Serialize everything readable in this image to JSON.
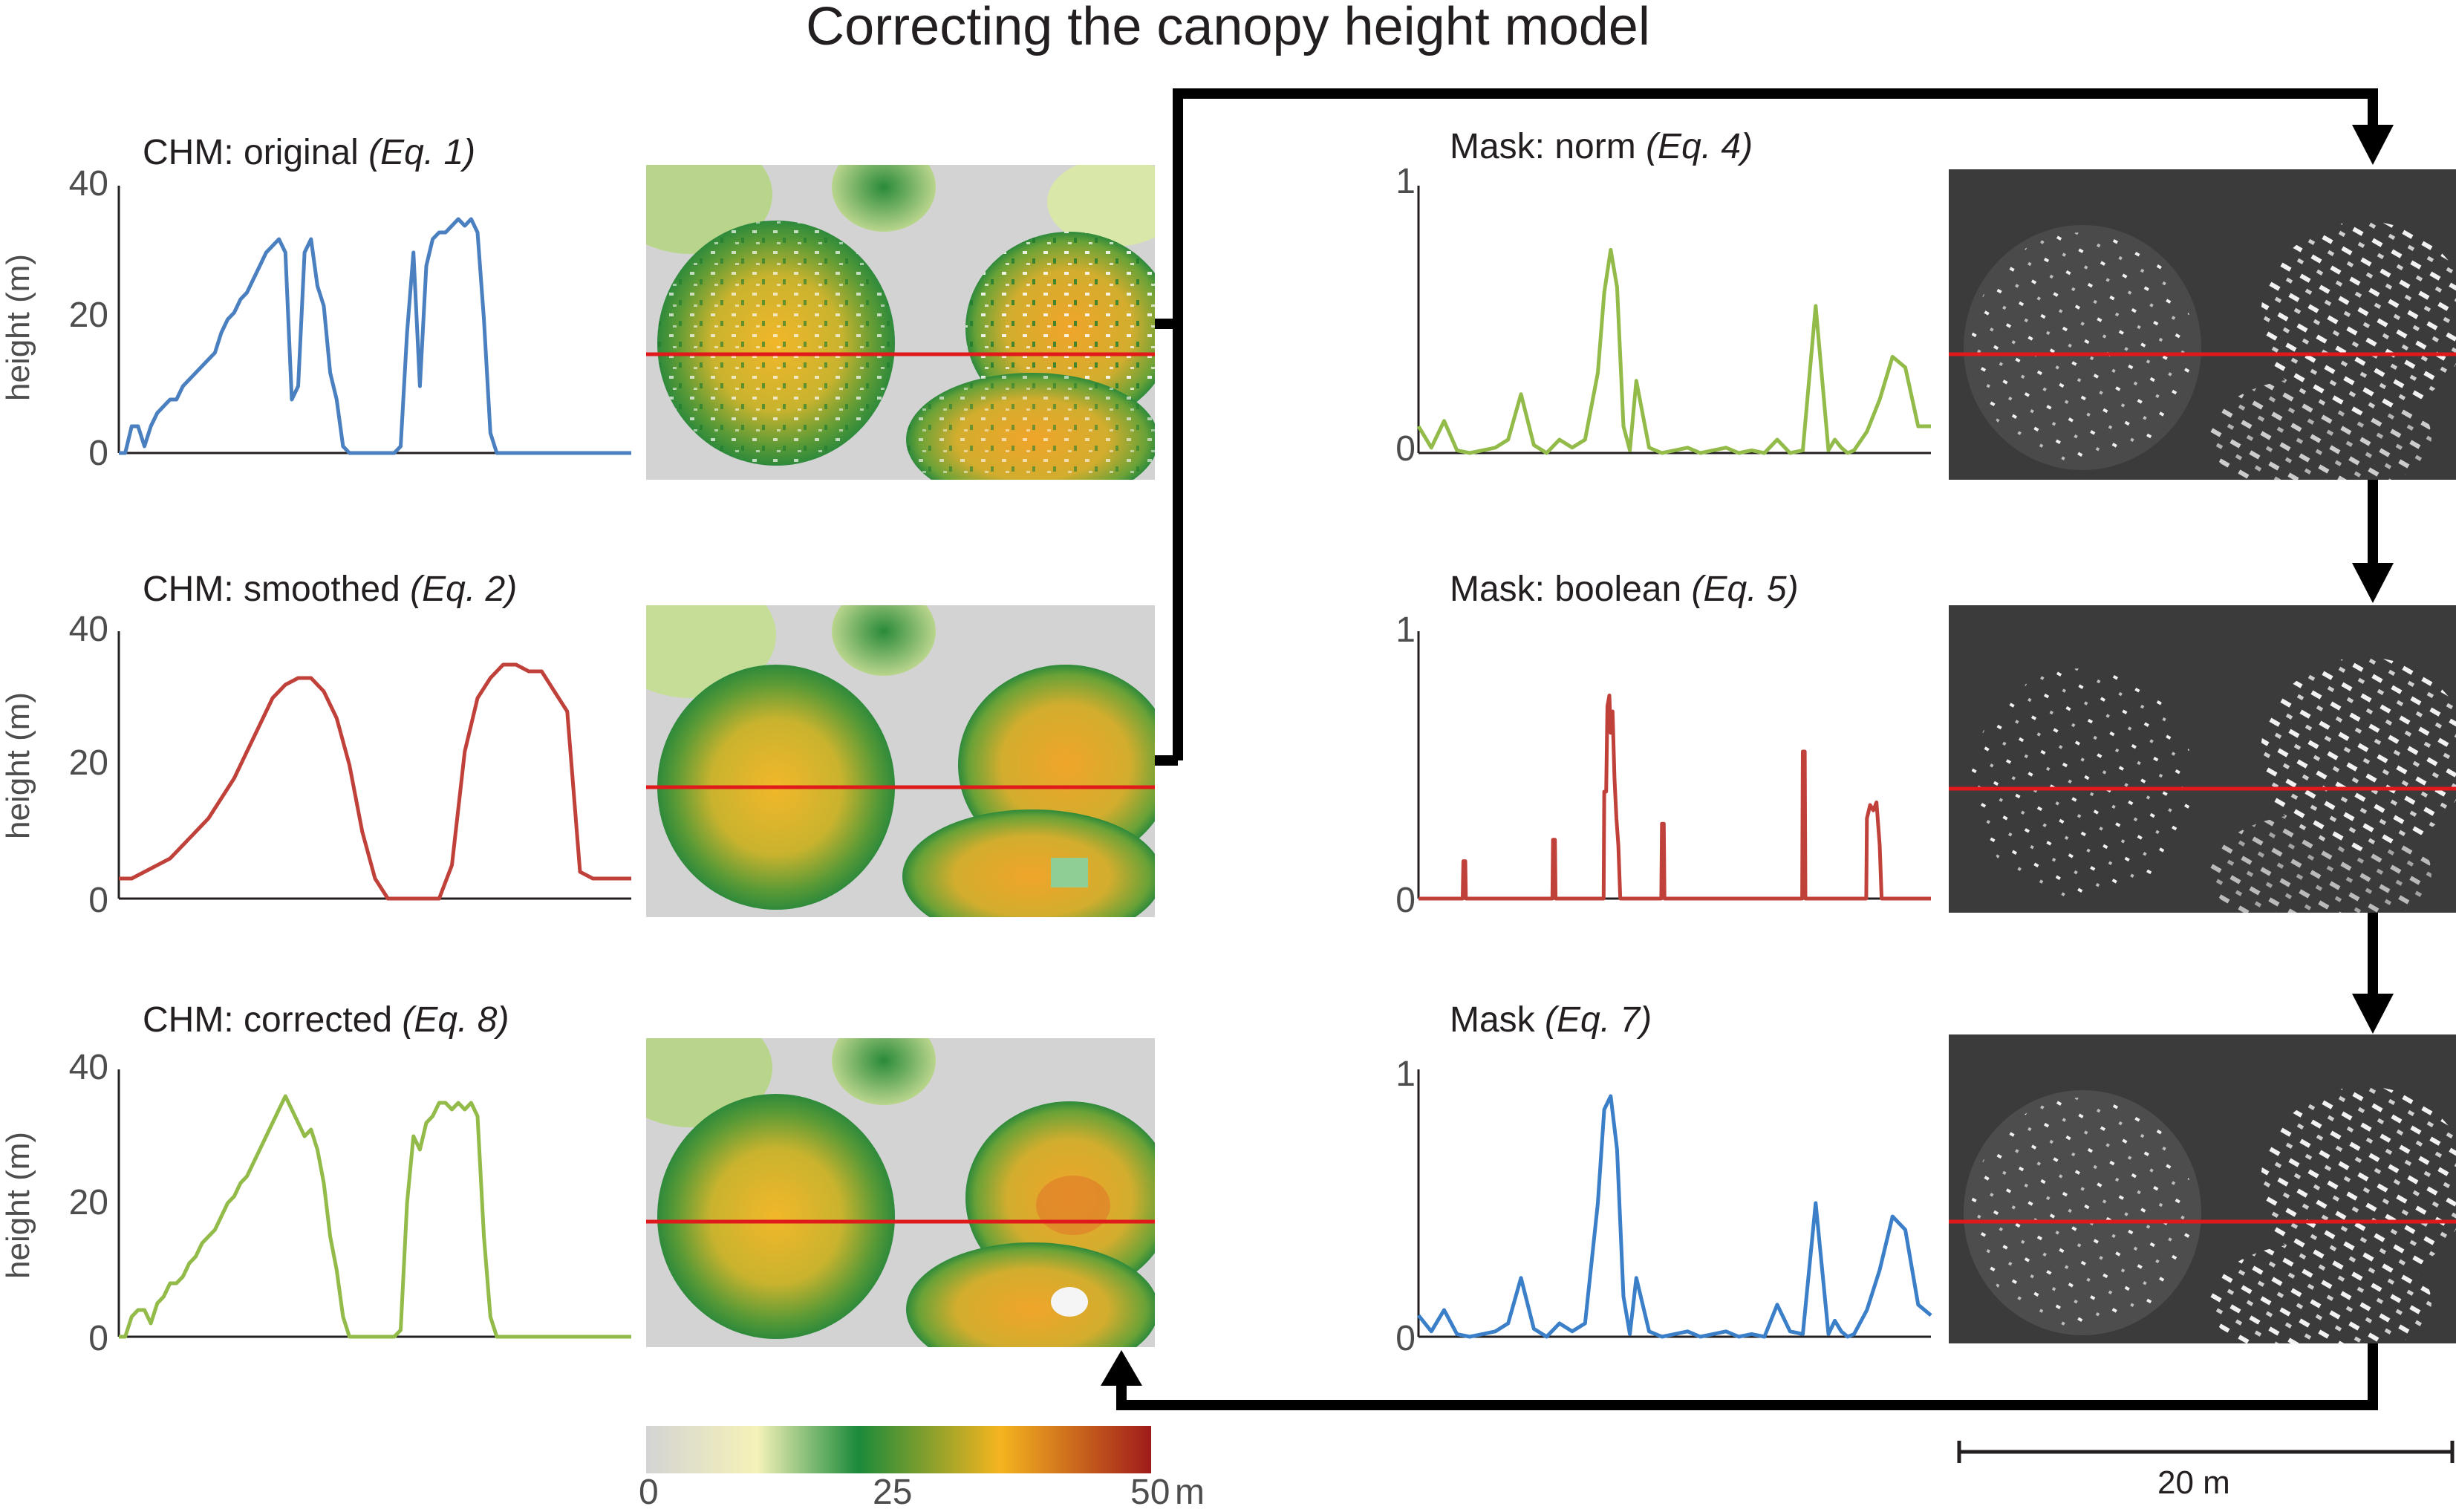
{
  "title": "Correcting the canopy height model",
  "colors": {
    "original": "#4a7fc0",
    "smoothed": "#c0413a",
    "corrected": "#92bb4a",
    "mask_norm": "#92bb4a",
    "mask_boolean": "#c0413a",
    "mask_final": "#3a7fc8",
    "transect": "#e0191b",
    "axis": "#231f20",
    "arrow": "#000000"
  },
  "colorbar": {
    "stops": [
      "#d4d4d4",
      "#f5f2b8",
      "#1a8a3a",
      "#f5b51f",
      "#a01b1b"
    ],
    "ticks": [
      "0",
      "25",
      "50"
    ],
    "unit": "m"
  },
  "scalebar": {
    "label": "20 m"
  },
  "chart_data": [
    {
      "type": "line",
      "title": "CHM: original",
      "eq": "(Eq. 1)",
      "ylabel": "height (m)",
      "yticks": [
        "0",
        "20",
        "40"
      ],
      "ylim": [
        0,
        40
      ],
      "xlim": [
        0,
        80
      ],
      "series": [
        {
          "name": "CHM original",
          "color_key": "original",
          "x": [
            0,
            1,
            2,
            3,
            4,
            5,
            6,
            7,
            8,
            9,
            10,
            11,
            12,
            13,
            14,
            15,
            16,
            17,
            18,
            19,
            20,
            21,
            22,
            23,
            24,
            25,
            26,
            27,
            28,
            29,
            30,
            31,
            32,
            33,
            34,
            35,
            36,
            37,
            38,
            39,
            40,
            41,
            42,
            43,
            44,
            45,
            46,
            47,
            48,
            49,
            50,
            51,
            52,
            53,
            54,
            55,
            56,
            57,
            58,
            59,
            60,
            61,
            62,
            63,
            64,
            65,
            66,
            67,
            68,
            69,
            70,
            71,
            72,
            73,
            74,
            75,
            76,
            77,
            78,
            79,
            80
          ],
          "y": [
            0,
            0,
            4,
            4,
            1,
            4,
            6,
            7,
            8,
            8,
            10,
            11,
            12,
            13,
            14,
            15,
            18,
            20,
            21,
            23,
            24,
            26,
            28,
            30,
            31,
            32,
            30,
            8,
            10,
            30,
            32,
            25,
            22,
            12,
            8,
            1,
            0,
            0,
            0,
            0,
            0,
            0,
            0,
            0,
            1,
            18,
            30,
            10,
            28,
            32,
            33,
            33,
            34,
            35,
            34,
            35,
            33,
            20,
            3,
            0,
            0,
            0,
            0,
            0,
            0,
            0,
            0,
            0,
            0,
            0,
            0,
            0,
            0,
            0,
            0,
            0,
            0,
            0,
            0,
            0,
            0
          ]
        }
      ]
    },
    {
      "type": "line",
      "title": "CHM: smoothed",
      "eq": "(Eq. 2)",
      "ylabel": "height (m)",
      "yticks": [
        "0",
        "20",
        "40"
      ],
      "ylim": [
        0,
        40
      ],
      "xlim": [
        0,
        80
      ],
      "series": [
        {
          "name": "CHM smoothed",
          "color_key": "smoothed",
          "x": [
            0,
            2,
            4,
            6,
            8,
            10,
            12,
            14,
            16,
            18,
            20,
            22,
            24,
            26,
            28,
            30,
            32,
            34,
            36,
            38,
            40,
            42,
            44,
            46,
            48,
            50,
            52,
            54,
            56,
            58,
            60,
            62,
            64,
            66,
            68,
            70,
            72,
            74,
            76,
            78,
            80
          ],
          "y": [
            3,
            3,
            4,
            5,
            6,
            8,
            10,
            12,
            15,
            18,
            22,
            26,
            30,
            32,
            33,
            33,
            31,
            27,
            20,
            10,
            3,
            0,
            0,
            0,
            0,
            0,
            5,
            22,
            30,
            33,
            35,
            35,
            34,
            34,
            31,
            28,
            4,
            3,
            3,
            3,
            3
          ]
        }
      ]
    },
    {
      "type": "line",
      "title": "CHM: corrected",
      "eq": "(Eq. 8)",
      "ylabel": "height (m)",
      "yticks": [
        "0",
        "20",
        "40"
      ],
      "ylim": [
        0,
        40
      ],
      "xlim": [
        0,
        80
      ],
      "series": [
        {
          "name": "CHM corrected",
          "color_key": "corrected",
          "x": [
            0,
            1,
            2,
            3,
            4,
            5,
            6,
            7,
            8,
            9,
            10,
            11,
            12,
            13,
            14,
            15,
            16,
            17,
            18,
            19,
            20,
            21,
            22,
            23,
            24,
            25,
            26,
            27,
            28,
            29,
            30,
            31,
            32,
            33,
            34,
            35,
            36,
            37,
            38,
            39,
            40,
            41,
            42,
            43,
            44,
            45,
            46,
            47,
            48,
            49,
            50,
            51,
            52,
            53,
            54,
            55,
            56,
            57,
            58,
            59,
            60,
            61,
            62,
            63,
            64,
            65,
            66,
            67,
            68,
            69,
            70,
            71,
            72,
            73,
            74,
            75,
            76,
            77,
            78,
            79,
            80
          ],
          "y": [
            0,
            0,
            3,
            4,
            4,
            2,
            5,
            6,
            8,
            8,
            9,
            11,
            12,
            14,
            15,
            16,
            18,
            20,
            21,
            23,
            24,
            26,
            28,
            30,
            32,
            34,
            36,
            34,
            32,
            30,
            31,
            28,
            23,
            15,
            10,
            3,
            0,
            0,
            0,
            0,
            0,
            0,
            0,
            0,
            1,
            20,
            30,
            28,
            32,
            33,
            35,
            35,
            34,
            35,
            34,
            35,
            33,
            15,
            3,
            0,
            0,
            0,
            0,
            0,
            0,
            0,
            0,
            0,
            0,
            0,
            0,
            0,
            0,
            0,
            0,
            0,
            0,
            0,
            0,
            0,
            0
          ]
        }
      ]
    },
    {
      "type": "line",
      "title": "Mask: norm",
      "eq": "(Eq. 4)",
      "yticks": [
        "0",
        "1"
      ],
      "ylim": [
        0,
        1
      ],
      "xlim": [
        0,
        80
      ],
      "series": [
        {
          "name": "Mask norm",
          "color_key": "mask_norm",
          "x": [
            0,
            2,
            4,
            6,
            8,
            10,
            12,
            14,
            16,
            18,
            20,
            22,
            24,
            26,
            28,
            29,
            30,
            31,
            32,
            33,
            34,
            36,
            38,
            40,
            42,
            44,
            46,
            48,
            50,
            52,
            54,
            56,
            58,
            60,
            62,
            64,
            65,
            66,
            67,
            68,
            70,
            72,
            74,
            76,
            78,
            80
          ],
          "y": [
            0.1,
            0.02,
            0.12,
            0.01,
            0.0,
            0.01,
            0.02,
            0.05,
            0.22,
            0.03,
            0.0,
            0.05,
            0.02,
            0.05,
            0.3,
            0.6,
            0.76,
            0.62,
            0.1,
            0.01,
            0.27,
            0.02,
            0.0,
            0.01,
            0.02,
            0.0,
            0.01,
            0.02,
            0.0,
            0.01,
            0.0,
            0.05,
            0.0,
            0.01,
            0.55,
            0.01,
            0.05,
            0.02,
            0.0,
            0.01,
            0.08,
            0.2,
            0.36,
            0.32,
            0.1,
            0.1
          ]
        }
      ]
    },
    {
      "type": "line",
      "title": "Mask: boolean",
      "eq": "(Eq. 5)",
      "yticks": [
        "0",
        "1"
      ],
      "ylim": [
        0,
        1
      ],
      "xlim": [
        0,
        80
      ],
      "series": [
        {
          "name": "Mask boolean",
          "color_key": "mask_boolean",
          "x": [
            0,
            6.9,
            7,
            7.3,
            7.4,
            20.9,
            21,
            21.3,
            21.4,
            28.9,
            29,
            29.3,
            29.5,
            29.8,
            30.0,
            30.3,
            30.6,
            30.9,
            31.2,
            31.5,
            37.9,
            38,
            38.3,
            38.4,
            59.9,
            60,
            60.3,
            60.4,
            69.9,
            70,
            70.5,
            71,
            71.5,
            72,
            72.3,
            80
          ],
          "y": [
            0,
            0,
            0.14,
            0.14,
            0,
            0,
            0.22,
            0.22,
            0,
            0,
            0.4,
            0.4,
            0.72,
            0.76,
            0.62,
            0.7,
            0.45,
            0.3,
            0.2,
            0,
            0,
            0.28,
            0.28,
            0,
            0,
            0.55,
            0.55,
            0,
            0,
            0.3,
            0.35,
            0.33,
            0.36,
            0.2,
            0,
            0
          ]
        }
      ]
    },
    {
      "type": "line",
      "title": "Mask",
      "eq": "(Eq. 7)",
      "yticks": [
        "0",
        "1"
      ],
      "ylim": [
        0,
        1
      ],
      "xlim": [
        0,
        80
      ],
      "series": [
        {
          "name": "Mask final",
          "color_key": "mask_final",
          "x": [
            0,
            2,
            4,
            6,
            8,
            10,
            12,
            14,
            16,
            18,
            20,
            22,
            24,
            26,
            28,
            29,
            30,
            31,
            32,
            33,
            34,
            36,
            38,
            40,
            42,
            44,
            46,
            48,
            50,
            52,
            54,
            56,
            58,
            60,
            62,
            64,
            65,
            66,
            67,
            68,
            70,
            72,
            74,
            76,
            78,
            80
          ],
          "y": [
            0.08,
            0.02,
            0.1,
            0.01,
            0.0,
            0.01,
            0.02,
            0.05,
            0.22,
            0.03,
            0.0,
            0.05,
            0.02,
            0.05,
            0.5,
            0.85,
            0.9,
            0.7,
            0.15,
            0.01,
            0.22,
            0.02,
            0.0,
            0.01,
            0.02,
            0.0,
            0.01,
            0.02,
            0.0,
            0.01,
            0.0,
            0.12,
            0.02,
            0.01,
            0.5,
            0.01,
            0.06,
            0.02,
            0.0,
            0.01,
            0.1,
            0.25,
            0.45,
            0.4,
            0.12,
            0.08
          ]
        }
      ]
    }
  ]
}
